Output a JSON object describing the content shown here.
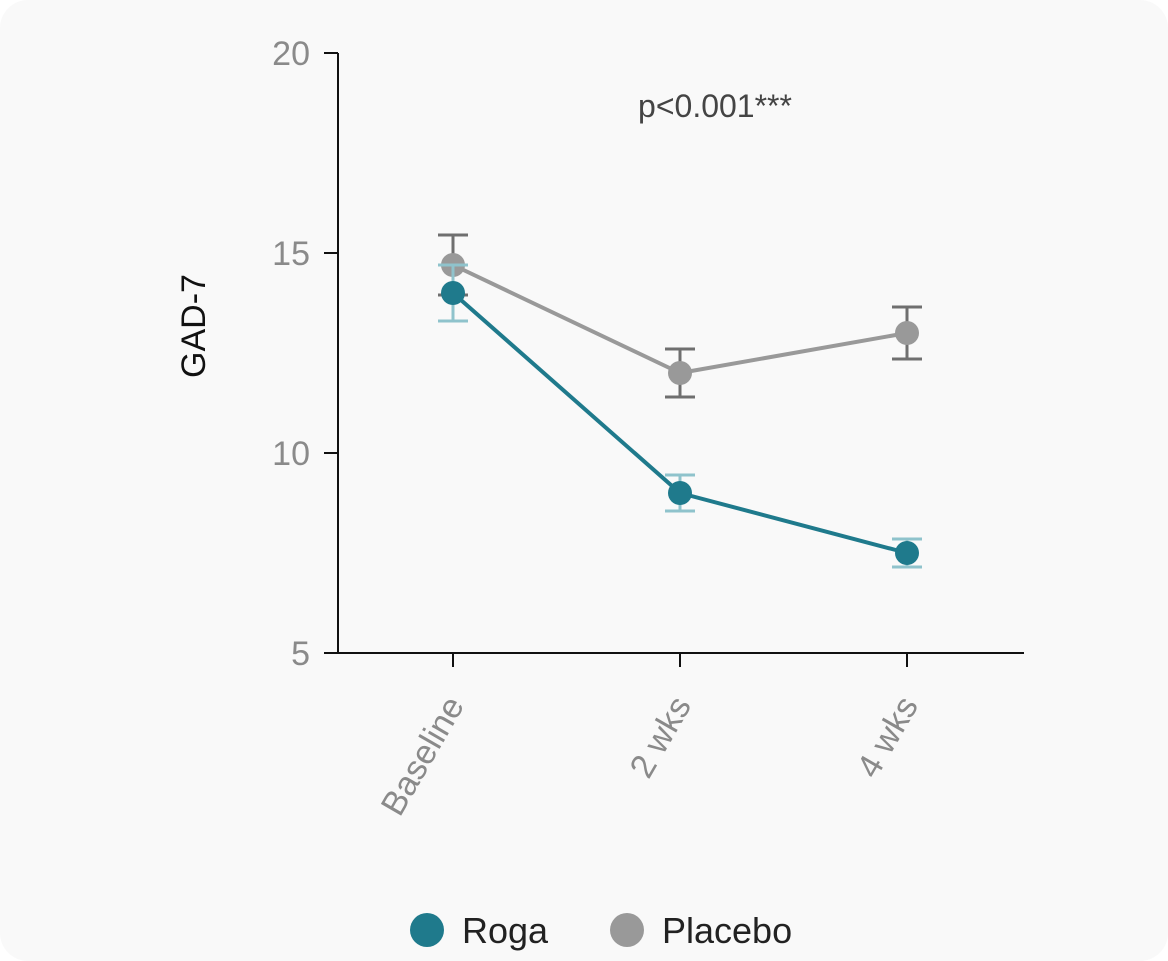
{
  "chart_data": {
    "type": "line",
    "categories": [
      "Baseline",
      "2 wks",
      "4 wks"
    ],
    "ylabel": "GAD-7",
    "ylim": [
      5,
      20
    ],
    "yticks": [
      5,
      10,
      15,
      20
    ],
    "annotation": "p<0.001***",
    "legend_position": "bottom-center",
    "grid": false,
    "series": [
      {
        "name": "Roga",
        "color": "#1f7a8c",
        "values": [
          14.0,
          9.0,
          7.5
        ],
        "error": [
          0.7,
          0.45,
          0.35
        ]
      },
      {
        "name": "Placebo",
        "color": "#999999",
        "values": [
          14.7,
          12.0,
          13.0
        ],
        "error": [
          0.75,
          0.6,
          0.65
        ]
      }
    ]
  }
}
